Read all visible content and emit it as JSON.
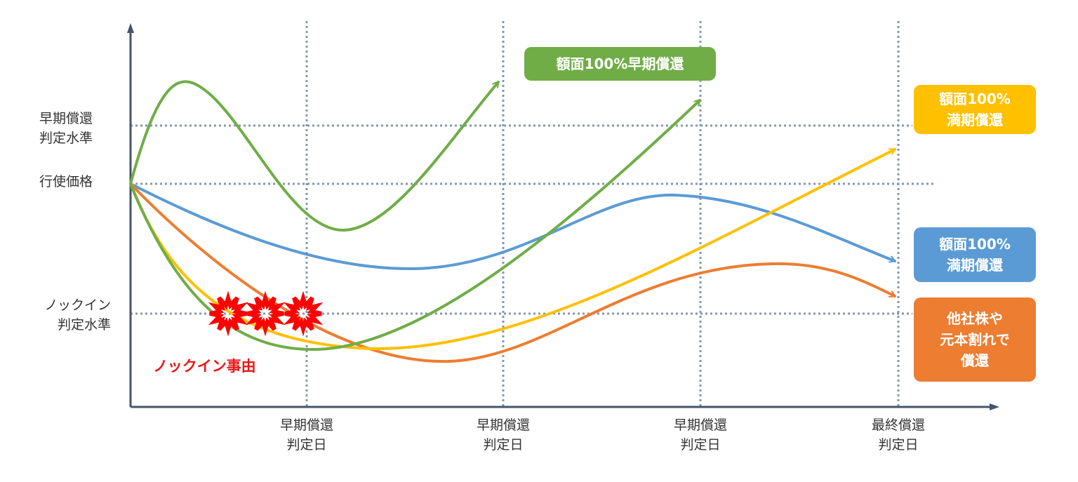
{
  "y_axis_labels": {
    "early_redemption_level": [
      "早期償還",
      "判定水準"
    ],
    "strike_price": "行使価格",
    "knock_in_level": [
      "ノックイン",
      "判定水準"
    ]
  },
  "x_axis_labels": [
    [
      "早期償還",
      "判定日"
    ],
    [
      "早期償還",
      "判定日"
    ],
    [
      "早期償還",
      "判定日"
    ],
    [
      "最終償還",
      "判定日"
    ]
  ],
  "outcomes": {
    "early_redemption": "額面100%早期償還",
    "maturity_yellow": [
      "額面100%",
      "満期償還"
    ],
    "maturity_blue": [
      "額面100%",
      "満期償還"
    ],
    "loss_redemption": [
      "他社株や",
      "元本割れで",
      "償還"
    ]
  },
  "knock_in_event": "ノックイン事由",
  "colors": {
    "green": "#70ad47",
    "yellow": "#ffc000",
    "blue": "#5b9bd5",
    "orange": "#ed7d31",
    "red": "#ff0000",
    "grid": "#8497b0",
    "axis": "#44546a"
  }
}
